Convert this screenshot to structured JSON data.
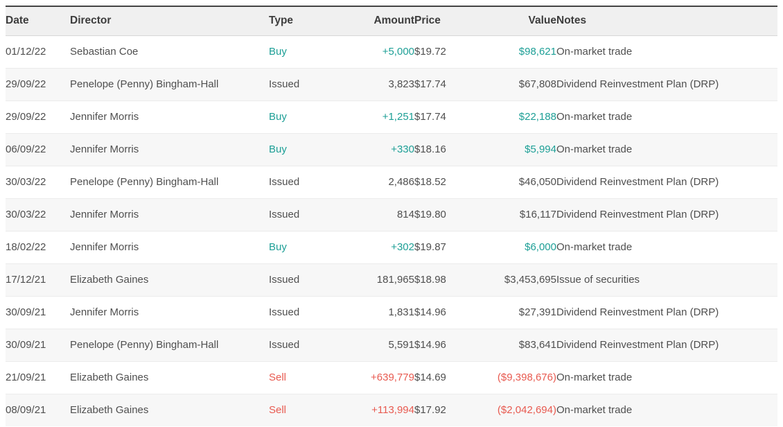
{
  "table": {
    "columns": [
      {
        "key": "date",
        "label": "Date"
      },
      {
        "key": "director",
        "label": "Director"
      },
      {
        "key": "type",
        "label": "Type"
      },
      {
        "key": "amount",
        "label": "Amount"
      },
      {
        "key": "price",
        "label": "Price"
      },
      {
        "key": "value",
        "label": "Value"
      },
      {
        "key": "notes",
        "label": "Notes"
      }
    ],
    "rows": [
      {
        "date": "01/12/22",
        "director": "Sebastian Coe",
        "type": "Buy",
        "amount": "+5,000",
        "price": "$19.72",
        "value": "$98,621",
        "notes": "On-market trade"
      },
      {
        "date": "29/09/22",
        "director": "Penelope (Penny) Bingham-Hall",
        "type": "Issued",
        "amount": "3,823",
        "price": "$17.74",
        "value": "$67,808",
        "notes": "Dividend Reinvestment Plan (DRP)"
      },
      {
        "date": "29/09/22",
        "director": "Jennifer Morris",
        "type": "Buy",
        "amount": "+1,251",
        "price": "$17.74",
        "value": "$22,188",
        "notes": "On-market trade"
      },
      {
        "date": "06/09/22",
        "director": "Jennifer Morris",
        "type": "Buy",
        "amount": "+330",
        "price": "$18.16",
        "value": "$5,994",
        "notes": "On-market trade"
      },
      {
        "date": "30/03/22",
        "director": "Penelope (Penny) Bingham-Hall",
        "type": "Issued",
        "amount": "2,486",
        "price": "$18.52",
        "value": "$46,050",
        "notes": "Dividend Reinvestment Plan (DRP)"
      },
      {
        "date": "30/03/22",
        "director": "Jennifer Morris",
        "type": "Issued",
        "amount": "814",
        "price": "$19.80",
        "value": "$16,117",
        "notes": "Dividend Reinvestment Plan (DRP)"
      },
      {
        "date": "18/02/22",
        "director": "Jennifer Morris",
        "type": "Buy",
        "amount": "+302",
        "price": "$19.87",
        "value": "$6,000",
        "notes": "On-market trade"
      },
      {
        "date": "17/12/21",
        "director": "Elizabeth Gaines",
        "type": "Issued",
        "amount": "181,965",
        "price": "$18.98",
        "value": "$3,453,695",
        "notes": "Issue of securities"
      },
      {
        "date": "30/09/21",
        "director": "Jennifer Morris",
        "type": "Issued",
        "amount": "1,831",
        "price": "$14.96",
        "value": "$27,391",
        "notes": "Dividend Reinvestment Plan (DRP)"
      },
      {
        "date": "30/09/21",
        "director": "Penelope (Penny) Bingham-Hall",
        "type": "Issued",
        "amount": "5,591",
        "price": "$14.96",
        "value": "$83,641",
        "notes": "Dividend Reinvestment Plan (DRP)"
      },
      {
        "date": "21/09/21",
        "director": "Elizabeth Gaines",
        "type": "Sell",
        "amount": "+639,779",
        "price": "$14.69",
        "value": "($9,398,676)",
        "notes": "On-market trade"
      },
      {
        "date": "08/09/21",
        "director": "Elizabeth Gaines",
        "type": "Sell",
        "amount": "+113,994",
        "price": "$17.92",
        "value": "($2,042,694)",
        "notes": "On-market trade"
      }
    ],
    "colors": {
      "buy": "#1d9f96",
      "sell": "#e85a50"
    }
  }
}
